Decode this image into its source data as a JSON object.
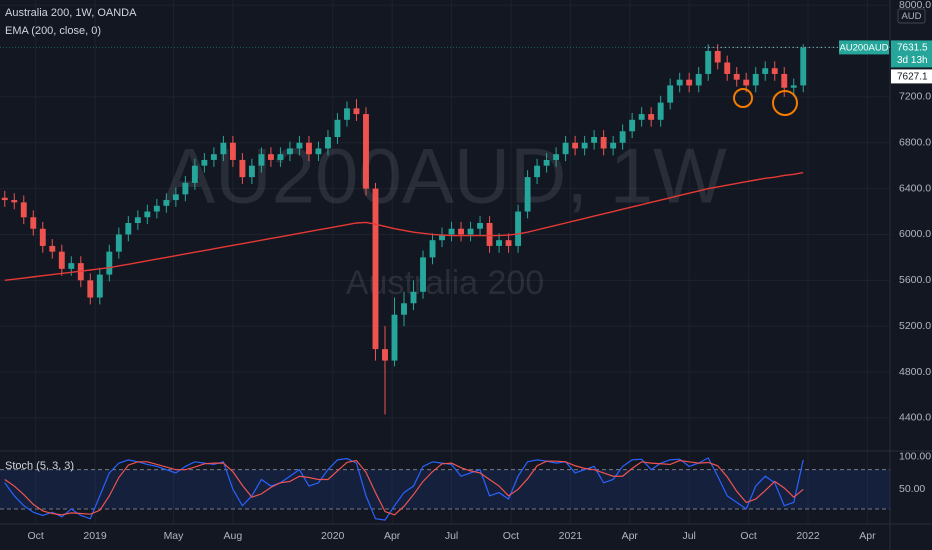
{
  "chart_data": [
    {
      "type": "candlestick",
      "title": "Australia 200, 1W, OANDA",
      "watermark": "AU200AUD, 1W",
      "watermark_subtitle": "Australia 200",
      "currency": "AUD",
      "up_color": "#26a69a",
      "down_color": "#ef5350",
      "x": [
        2018.62,
        2018.66,
        2018.7,
        2018.74,
        2018.78,
        2018.82,
        2018.86,
        2018.9,
        2018.94,
        2018.98,
        2019.02,
        2019.06,
        2019.1,
        2019.14,
        2019.18,
        2019.22,
        2019.26,
        2019.3,
        2019.34,
        2019.38,
        2019.42,
        2019.46,
        2019.5,
        2019.54,
        2019.58,
        2019.62,
        2019.66,
        2019.7,
        2019.74,
        2019.78,
        2019.82,
        2019.86,
        2019.9,
        2019.94,
        2019.98,
        2020.02,
        2020.06,
        2020.1,
        2020.14,
        2020.18,
        2020.22,
        2020.26,
        2020.3,
        2020.34,
        2020.38,
        2020.42,
        2020.46,
        2020.5,
        2020.54,
        2020.58,
        2020.62,
        2020.66,
        2020.7,
        2020.74,
        2020.78,
        2020.82,
        2020.86,
        2020.9,
        2020.94,
        2020.98,
        2021.02,
        2021.06,
        2021.1,
        2021.14,
        2021.18,
        2021.22,
        2021.26,
        2021.3,
        2021.34,
        2021.38,
        2021.42,
        2021.46,
        2021.5,
        2021.54,
        2021.58,
        2021.62,
        2021.66,
        2021.7,
        2021.74,
        2021.78,
        2021.82,
        2021.86,
        2021.9,
        2021.94,
        2021.98
      ],
      "open": [
        6320,
        6300,
        6280,
        6150,
        6050,
        5900,
        5850,
        5700,
        5750,
        5600,
        5450,
        5650,
        5850,
        6000,
        6100,
        6150,
        6200,
        6250,
        6300,
        6350,
        6450,
        6600,
        6650,
        6700,
        6800,
        6650,
        6500,
        6600,
        6700,
        6650,
        6700,
        6750,
        6800,
        6700,
        6750,
        6850,
        7000,
        7100,
        7050,
        6400,
        5000,
        4900,
        5300,
        5400,
        5500,
        5800,
        5950,
        6000,
        6050,
        6000,
        6050,
        6100,
        5900,
        5950,
        5900,
        6200,
        6500,
        6600,
        6650,
        6700,
        6800,
        6750,
        6800,
        6850,
        6750,
        6800,
        6900,
        7000,
        7050,
        7000,
        7150,
        7300,
        7350,
        7300,
        7400,
        7600,
        7500,
        7400,
        7350,
        7300,
        7400,
        7450,
        7400,
        7280,
        7300
      ],
      "high": [
        6380,
        6360,
        6340,
        6210,
        6110,
        5960,
        5910,
        5810,
        5810,
        5660,
        5710,
        5910,
        6060,
        6160,
        6210,
        6260,
        6310,
        6360,
        6410,
        6510,
        6660,
        6710,
        6760,
        6860,
        6860,
        6710,
        6660,
        6760,
        6760,
        6760,
        6810,
        6860,
        6860,
        6810,
        6910,
        7060,
        7160,
        7180,
        7110,
        6450,
        5200,
        5450,
        5500,
        5600,
        5860,
        6010,
        6060,
        6110,
        6110,
        6110,
        6160,
        6160,
        6010,
        6010,
        6260,
        6560,
        6660,
        6710,
        6760,
        6860,
        6860,
        6860,
        6910,
        6910,
        6860,
        6960,
        7060,
        7110,
        7110,
        7210,
        7360,
        7410,
        7410,
        7460,
        7660,
        7660,
        7560,
        7460,
        7410,
        7460,
        7510,
        7510,
        7460,
        7360,
        7660
      ],
      "low": [
        6240,
        6220,
        6090,
        5990,
        5840,
        5790,
        5640,
        5640,
        5540,
        5390,
        5390,
        5590,
        5790,
        5940,
        6040,
        6090,
        6140,
        6190,
        6240,
        6290,
        6390,
        6540,
        6590,
        6640,
        6590,
        6440,
        6440,
        6540,
        6590,
        6590,
        6640,
        6690,
        6640,
        6640,
        6690,
        6790,
        6940,
        6990,
        6340,
        4900,
        4430,
        4850,
        5200,
        5340,
        5440,
        5740,
        5890,
        5940,
        5940,
        5940,
        5990,
        5840,
        5840,
        5840,
        5840,
        6140,
        6440,
        6540,
        6590,
        6640,
        6690,
        6690,
        6740,
        6690,
        6690,
        6740,
        6840,
        6940,
        6940,
        6940,
        7090,
        7240,
        7240,
        7240,
        7340,
        7440,
        7340,
        7290,
        7240,
        7240,
        7340,
        7340,
        7200,
        7220,
        7240
      ],
      "close": [
        6300,
        6280,
        6150,
        6050,
        5900,
        5850,
        5700,
        5750,
        5600,
        5450,
        5650,
        5850,
        6000,
        6100,
        6150,
        6200,
        6250,
        6300,
        6350,
        6450,
        6600,
        6650,
        6700,
        6800,
        6650,
        6500,
        6600,
        6700,
        6650,
        6700,
        6750,
        6800,
        6700,
        6750,
        6850,
        7000,
        7100,
        7050,
        6400,
        5000,
        4900,
        5300,
        5400,
        5500,
        5800,
        5950,
        6000,
        6050,
        6000,
        6050,
        6100,
        5900,
        5950,
        5900,
        6200,
        6500,
        6600,
        6650,
        6700,
        6800,
        6750,
        6800,
        6850,
        6750,
        6800,
        6900,
        7000,
        7050,
        7000,
        7150,
        7300,
        7350,
        7300,
        7400,
        7600,
        7500,
        7400,
        7350,
        7300,
        7400,
        7450,
        7400,
        7280,
        7300,
        7630
      ],
      "indicators": [
        {
          "name": "EMA (200, close, 0)",
          "color": "#e53935",
          "values": [
            5600,
            5610,
            5620,
            5630,
            5640,
            5650,
            5660,
            5670,
            5680,
            5690,
            5700,
            5710,
            5725,
            5740,
            5755,
            5770,
            5785,
            5800,
            5815,
            5830,
            5845,
            5860,
            5875,
            5890,
            5905,
            5920,
            5935,
            5950,
            5965,
            5980,
            5995,
            6010,
            6025,
            6040,
            6055,
            6070,
            6085,
            6100,
            6105,
            6090,
            6070,
            6050,
            6035,
            6020,
            6010,
            6000,
            5995,
            5990,
            5990,
            5990,
            5990,
            5990,
            5990,
            5995,
            6005,
            6020,
            6040,
            6060,
            6080,
            6100,
            6120,
            6140,
            6160,
            6180,
            6200,
            6220,
            6240,
            6260,
            6280,
            6300,
            6320,
            6340,
            6360,
            6380,
            6400,
            6415,
            6430,
            6445,
            6460,
            6475,
            6490,
            6500,
            6515,
            6525,
            6540
          ]
        }
      ],
      "last_price": {
        "symbol": "AU200AUD",
        "value": 7631.5,
        "countdown": "3d 13h",
        "color": "#26a69a"
      },
      "ask_price": 7627.1,
      "ylim": [
        4120,
        8045
      ],
      "yticks": [
        {
          "value": 4400,
          "label": "4400.0"
        },
        {
          "value": 4800,
          "label": "4800.0"
        },
        {
          "value": 5200,
          "label": "5200.0"
        },
        {
          "value": 5600,
          "label": "5600.0"
        },
        {
          "value": 6000,
          "label": "6000.0"
        },
        {
          "value": 6400,
          "label": "6400.0"
        },
        {
          "value": 6800,
          "label": "6800.0"
        },
        {
          "value": 7200,
          "label": "7200.0"
        },
        {
          "value": 8000,
          "label": "8000.0"
        }
      ],
      "xlim": [
        2018.6,
        2022.345
      ],
      "xticks": [
        {
          "value": 2018.75,
          "label": "Oct"
        },
        2019,
        {
          "value": 2019.33,
          "label": "May"
        },
        {
          "value": 2019.58,
          "label": "Aug"
        },
        2020,
        {
          "value": 2020.25,
          "label": "Apr"
        },
        {
          "value": 2020.5,
          "label": "Jul"
        },
        {
          "value": 2020.75,
          "label": "Oct"
        },
        2021,
        {
          "value": 2021.25,
          "label": "Apr"
        },
        {
          "value": 2021.5,
          "label": "Jul"
        },
        {
          "value": 2021.75,
          "label": "Oct"
        },
        2022,
        {
          "value": 2022.25,
          "label": "Apr"
        }
      ],
      "grid": true
    },
    {
      "type": "line",
      "title": "Stoch (5, 3, 3)",
      "series": [
        {
          "color": "#2962ff",
          "values": [
            60,
            40,
            25,
            15,
            10,
            15,
            8,
            20,
            10,
            5,
            40,
            75,
            90,
            95,
            92,
            88,
            85,
            80,
            75,
            85,
            92,
            90,
            88,
            92,
            50,
            25,
            40,
            65,
            55,
            60,
            70,
            80,
            55,
            60,
            80,
            95,
            97,
            90,
            40,
            5,
            3,
            25,
            45,
            55,
            85,
            92,
            90,
            88,
            70,
            75,
            80,
            40,
            45,
            35,
            70,
            92,
            95,
            93,
            90,
            92,
            75,
            80,
            85,
            60,
            65,
            85,
            95,
            96,
            80,
            90,
            95,
            96,
            85,
            90,
            98,
            70,
            40,
            30,
            20,
            55,
            70,
            60,
            25,
            30,
            95
          ]
        },
        {
          "color": "#ef5350",
          "values": [
            65,
            55,
            42,
            27,
            17,
            13,
            11,
            14,
            13,
            12,
            18,
            40,
            68,
            87,
            92,
            92,
            88,
            84,
            80,
            80,
            84,
            89,
            90,
            90,
            77,
            56,
            38,
            43,
            53,
            60,
            62,
            70,
            68,
            65,
            65,
            78,
            91,
            94,
            76,
            45,
            16,
            11,
            24,
            42,
            62,
            77,
            89,
            90,
            83,
            78,
            75,
            65,
            55,
            40,
            50,
            66,
            86,
            93,
            93,
            92,
            86,
            82,
            80,
            75,
            70,
            70,
            82,
            92,
            90,
            89,
            88,
            94,
            92,
            90,
            91,
            86,
            69,
            47,
            30,
            35,
            48,
            62,
            52,
            38,
            50
          ]
        }
      ],
      "levels": [
        20,
        80
      ],
      "ylim": [
        -3,
        107
      ],
      "yticks": [
        {
          "value": 100,
          "label": "100.00"
        },
        {
          "value": 50,
          "label": "50.00"
        }
      ]
    }
  ]
}
